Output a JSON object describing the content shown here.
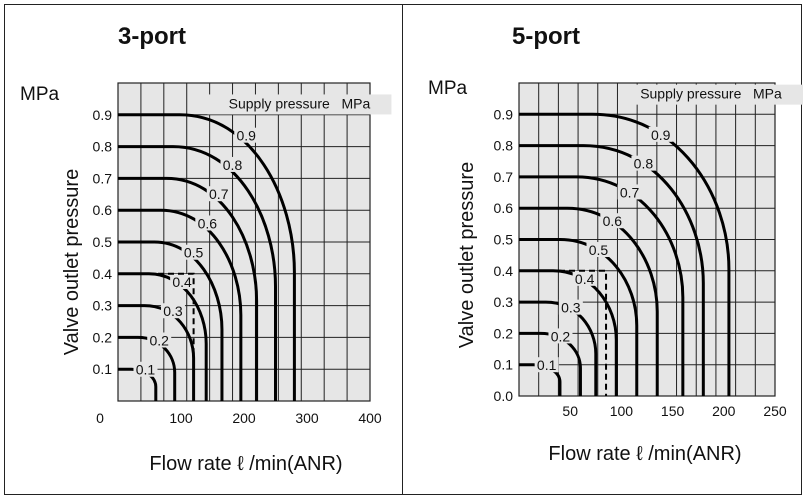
{
  "chart_data": [
    {
      "type": "line",
      "title": "3-port",
      "unit_label": "MPa",
      "ylabel": "Valve outlet pressure",
      "xlabel": "Flow rate ℓ /min(ANR)",
      "annotation": "Supply pressure   MPa",
      "xlim": [
        0,
        400
      ],
      "ylim": [
        0,
        1.0
      ],
      "x_ticks": [
        "0",
        "100",
        "200",
        "300",
        "400"
      ],
      "y_ticks": [
        "0.1",
        "0.2",
        "0.3",
        "0.4",
        "0.5",
        "0.6",
        "0.7",
        "0.8",
        "0.9"
      ],
      "grid": true,
      "series": [
        {
          "name": "0.1",
          "supply": 0.1,
          "max_flow": 60
        },
        {
          "name": "0.2",
          "supply": 0.2,
          "max_flow": 90
        },
        {
          "name": "0.3",
          "supply": 0.3,
          "max_flow": 120
        },
        {
          "name": "0.4",
          "supply": 0.4,
          "max_flow": 140
        },
        {
          "name": "0.5",
          "supply": 0.5,
          "max_flow": 165
        },
        {
          "name": "0.6",
          "supply": 0.6,
          "max_flow": 195
        },
        {
          "name": "0.7",
          "supply": 0.7,
          "max_flow": 220
        },
        {
          "name": "0.8",
          "supply": 0.8,
          "max_flow": 250
        },
        {
          "name": "0.9",
          "supply": 0.9,
          "max_flow": 280
        }
      ],
      "example": {
        "outlet_pressure": 0.4,
        "flow": 120
      }
    },
    {
      "type": "line",
      "title": "5-port",
      "unit_label": "MPa",
      "ylabel": "Valve outlet pressure",
      "xlabel": "Flow rate ℓ /min(ANR)",
      "annotation": "Supply pressure   MPa",
      "xlim": [
        0,
        250
      ],
      "ylim": [
        0,
        1.0
      ],
      "x_ticks": [
        "50",
        "100",
        "150",
        "200",
        "250"
      ],
      "y_ticks": [
        "0.0",
        "0.1",
        "0.2",
        "0.3",
        "0.4",
        "0.5",
        "0.6",
        "0.7",
        "0.8",
        "0.9"
      ],
      "grid": true,
      "series": [
        {
          "name": "0.1",
          "supply": 0.1,
          "max_flow": 40
        },
        {
          "name": "0.2",
          "supply": 0.2,
          "max_flow": 60
        },
        {
          "name": "0.3",
          "supply": 0.3,
          "max_flow": 75
        },
        {
          "name": "0.4",
          "supply": 0.4,
          "max_flow": 95
        },
        {
          "name": "0.5",
          "supply": 0.5,
          "max_flow": 115
        },
        {
          "name": "0.6",
          "supply": 0.6,
          "max_flow": 135
        },
        {
          "name": "0.7",
          "supply": 0.7,
          "max_flow": 160
        },
        {
          "name": "0.8",
          "supply": 0.8,
          "max_flow": 180
        },
        {
          "name": "0.9",
          "supply": 0.9,
          "max_flow": 205
        }
      ],
      "example": {
        "outlet_pressure": 0.4,
        "flow": 85
      }
    }
  ]
}
